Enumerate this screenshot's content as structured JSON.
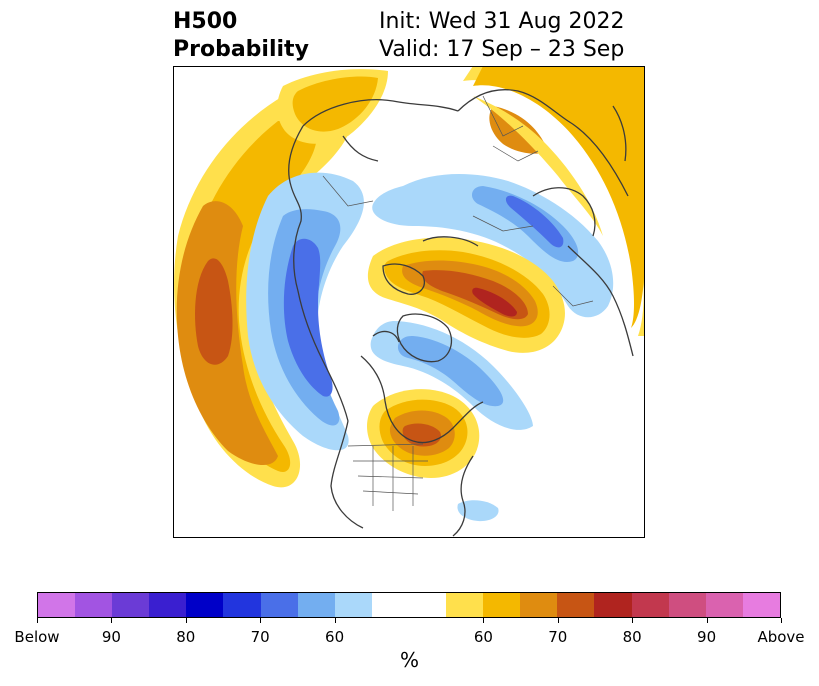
{
  "title": {
    "left_line1": "H500",
    "left_line2": "Probability",
    "init": "Init: Wed 31 Aug 2022",
    "valid": "Valid: 17 Sep – 23 Sep"
  },
  "colorbar": {
    "colors": [
      "#d175e8",
      "#a254e2",
      "#6b3bd6",
      "#3a1fd0",
      "#0000c8",
      "#2235de",
      "#4a6fe8",
      "#73aef0",
      "#aad8fa",
      "#ffffff",
      "#ffffff",
      "#ffe04c",
      "#f4b800",
      "#df8c10",
      "#c75514",
      "#b0241f",
      "#c2384e",
      "#cf4e80",
      "#da62af",
      "#e77ce0"
    ],
    "ticks": [
      "Below",
      "90",
      "80",
      "70",
      "60",
      "60",
      "70",
      "80",
      "90",
      "Above"
    ],
    "unit": "%"
  },
  "map": {
    "projection": "north polar stereographic",
    "colors": {
      "land_outline": "#3b3b3b",
      "below_60": "#aad8fa",
      "below_70": "#73aef0",
      "below_80": "#4a6fe8",
      "above_60": "#ffe04c",
      "above_70": "#f4b800",
      "above_80": "#df8c10",
      "above_90": "#c75514",
      "above_max": "#b0241f"
    }
  }
}
